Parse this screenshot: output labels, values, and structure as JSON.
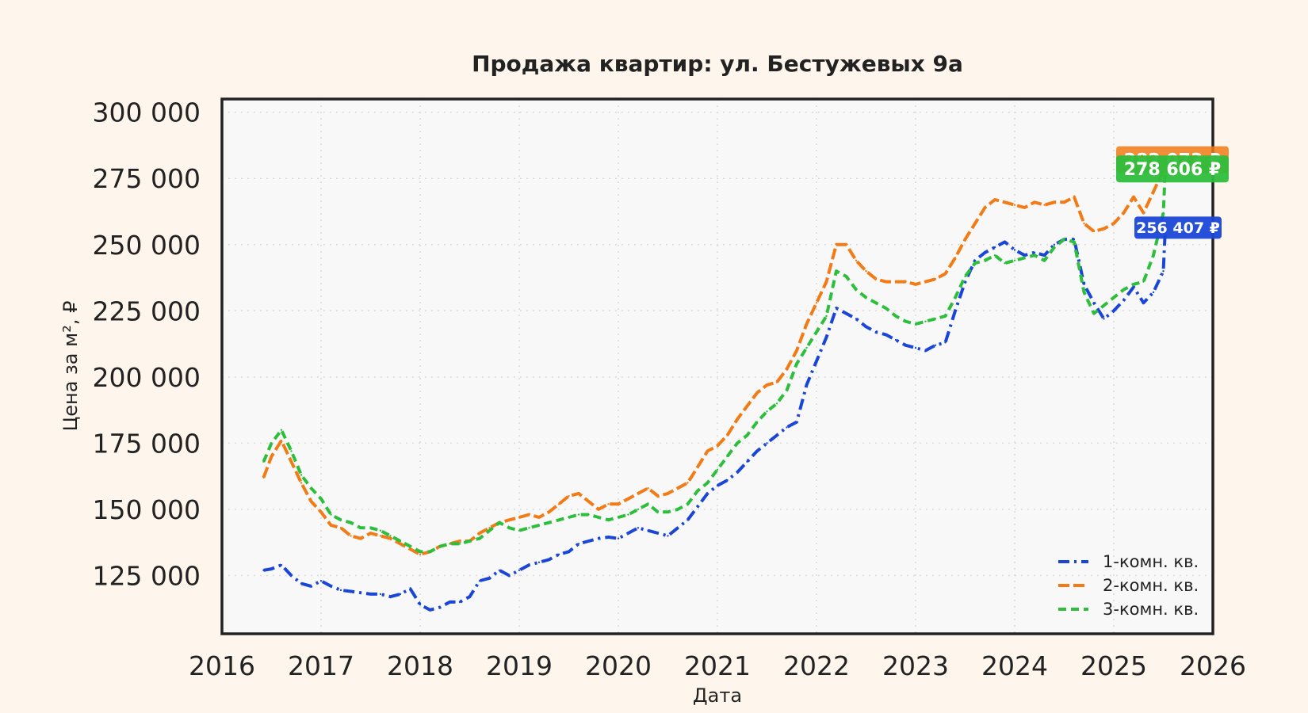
{
  "chart_data": {
    "type": "line",
    "title": "Продажа квартир: ул. Бестужевых 9а",
    "xlabel": "Дата",
    "ylabel": "Цена за м², ₽",
    "xlim": [
      2016,
      2026
    ],
    "ylim": [
      103000,
      305000
    ],
    "x_ticks": [
      "2016",
      "2017",
      "2018",
      "2019",
      "2020",
      "2021",
      "2022",
      "2023",
      "2024",
      "2025",
      "2026"
    ],
    "y_ticks": [
      125000,
      150000,
      175000,
      200000,
      225000,
      250000,
      275000,
      300000
    ],
    "y_tick_labels": [
      "125 000",
      "150 000",
      "175 000",
      "200 000",
      "225 000",
      "250 000",
      "275 000",
      "300 000"
    ],
    "grid": true,
    "legend_position": "bottom-right",
    "series": [
      {
        "name": "1-комн. кв.",
        "color": "#1A46D8",
        "dash": "dash-dot",
        "end_label": "256 407 ₽",
        "x": [
          2016.42,
          2016.5,
          2016.6,
          2016.7,
          2016.8,
          2016.9,
          2017.0,
          2017.1,
          2017.2,
          2017.3,
          2017.4,
          2017.5,
          2017.6,
          2017.7,
          2017.8,
          2017.9,
          2018.0,
          2018.1,
          2018.2,
          2018.3,
          2018.4,
          2018.5,
          2018.6,
          2018.7,
          2018.8,
          2018.9,
          2019.0,
          2019.1,
          2019.2,
          2019.3,
          2019.4,
          2019.5,
          2019.6,
          2019.7,
          2019.8,
          2019.9,
          2020.0,
          2020.1,
          2020.2,
          2020.3,
          2020.4,
          2020.5,
          2020.6,
          2020.7,
          2020.8,
          2020.9,
          2021.0,
          2021.1,
          2021.2,
          2021.3,
          2021.4,
          2021.5,
          2021.6,
          2021.7,
          2021.8,
          2021.9,
          2022.0,
          2022.1,
          2022.2,
          2022.3,
          2022.4,
          2022.5,
          2022.6,
          2022.7,
          2022.8,
          2022.9,
          2023.0,
          2023.1,
          2023.2,
          2023.3,
          2023.4,
          2023.5,
          2023.6,
          2023.7,
          2023.8,
          2023.9,
          2024.0,
          2024.1,
          2024.2,
          2024.3,
          2024.4,
          2024.5,
          2024.6,
          2024.7,
          2024.8,
          2024.9,
          2025.0,
          2025.1,
          2025.2,
          2025.3,
          2025.4,
          2025.5,
          2025.52
        ],
        "y": [
          127000,
          127500,
          129000,
          125000,
          122000,
          121000,
          123000,
          121000,
          119500,
          119000,
          118500,
          118000,
          118000,
          117000,
          118000,
          120000,
          114000,
          112000,
          113000,
          115000,
          115000,
          117000,
          123000,
          124000,
          127000,
          125000,
          127000,
          129000,
          130000,
          131000,
          133000,
          134000,
          137000,
          138000,
          139000,
          139500,
          139000,
          141000,
          143000,
          142000,
          141000,
          140000,
          143000,
          146000,
          151000,
          156000,
          159000,
          161000,
          164000,
          168000,
          172000,
          175000,
          178000,
          181000,
          183000,
          197000,
          206000,
          215000,
          226000,
          224000,
          222000,
          219000,
          217000,
          216000,
          214000,
          212000,
          211000,
          210000,
          212000,
          213000,
          225000,
          236000,
          244000,
          247000,
          249000,
          251000,
          248000,
          246000,
          247000,
          246000,
          250000,
          252000,
          252000,
          235000,
          228000,
          222000,
          225000,
          229000,
          234000,
          228000,
          232000,
          240000,
          256407
        ]
      },
      {
        "name": "2-комн. кв.",
        "color": "#F27B16",
        "dash": "dash",
        "end_label": "282 073 ₽",
        "x": [
          2016.42,
          2016.5,
          2016.6,
          2016.7,
          2016.8,
          2016.9,
          2017.0,
          2017.1,
          2017.2,
          2017.3,
          2017.4,
          2017.5,
          2017.6,
          2017.7,
          2017.8,
          2017.9,
          2018.0,
          2018.1,
          2018.2,
          2018.3,
          2018.4,
          2018.5,
          2018.6,
          2018.7,
          2018.8,
          2018.9,
          2019.0,
          2019.1,
          2019.2,
          2019.3,
          2019.4,
          2019.5,
          2019.6,
          2019.7,
          2019.8,
          2019.9,
          2020.0,
          2020.1,
          2020.2,
          2020.3,
          2020.4,
          2020.5,
          2020.6,
          2020.7,
          2020.8,
          2020.9,
          2021.0,
          2021.1,
          2021.2,
          2021.3,
          2021.4,
          2021.5,
          2021.6,
          2021.7,
          2021.8,
          2021.9,
          2022.0,
          2022.1,
          2022.2,
          2022.3,
          2022.4,
          2022.5,
          2022.6,
          2022.7,
          2022.8,
          2022.9,
          2023.0,
          2023.1,
          2023.2,
          2023.3,
          2023.4,
          2023.5,
          2023.6,
          2023.7,
          2023.8,
          2023.9,
          2024.0,
          2024.1,
          2024.2,
          2024.3,
          2024.4,
          2024.5,
          2024.6,
          2024.7,
          2024.8,
          2024.9,
          2025.0,
          2025.1,
          2025.2,
          2025.3,
          2025.4,
          2025.5,
          2025.52
        ],
        "y": [
          162000,
          170000,
          176000,
          168000,
          160000,
          153000,
          149000,
          144000,
          143000,
          140000,
          139000,
          141000,
          140000,
          139000,
          137000,
          135000,
          133000,
          134000,
          136000,
          137000,
          138000,
          138000,
          141000,
          143000,
          145000,
          146000,
          147000,
          148000,
          147000,
          149000,
          152000,
          155000,
          156000,
          153000,
          150000,
          152000,
          152000,
          154000,
          156000,
          158000,
          155000,
          156000,
          158000,
          160000,
          166000,
          172000,
          174000,
          178000,
          184000,
          189000,
          194000,
          197000,
          198000,
          203000,
          210000,
          220000,
          228000,
          236000,
          250000,
          250000,
          244000,
          240000,
          237000,
          236000,
          236000,
          236000,
          235000,
          236000,
          237000,
          239000,
          245000,
          252000,
          258000,
          264000,
          267000,
          266000,
          265000,
          264000,
          266000,
          265000,
          266000,
          266000,
          268000,
          258000,
          255000,
          256000,
          258000,
          262000,
          268000,
          262000,
          270000,
          278000,
          282073
        ]
      },
      {
        "name": "3-комн. кв.",
        "color": "#2DBE3B",
        "dash": "dash-short",
        "end_label": "278 606 ₽",
        "x": [
          2016.42,
          2016.5,
          2016.6,
          2016.7,
          2016.8,
          2016.9,
          2017.0,
          2017.1,
          2017.2,
          2017.3,
          2017.4,
          2017.5,
          2017.6,
          2017.7,
          2017.8,
          2017.9,
          2018.0,
          2018.1,
          2018.2,
          2018.3,
          2018.4,
          2018.5,
          2018.6,
          2018.7,
          2018.8,
          2018.9,
          2019.0,
          2019.1,
          2019.2,
          2019.3,
          2019.4,
          2019.5,
          2019.6,
          2019.7,
          2019.8,
          2019.9,
          2020.0,
          2020.1,
          2020.2,
          2020.3,
          2020.4,
          2020.5,
          2020.6,
          2020.7,
          2020.8,
          2020.9,
          2021.0,
          2021.1,
          2021.2,
          2021.3,
          2021.4,
          2021.5,
          2021.6,
          2021.7,
          2021.8,
          2021.9,
          2022.0,
          2022.1,
          2022.2,
          2022.3,
          2022.4,
          2022.5,
          2022.6,
          2022.7,
          2022.8,
          2022.9,
          2023.0,
          2023.1,
          2023.2,
          2023.3,
          2023.4,
          2023.5,
          2023.6,
          2023.7,
          2023.8,
          2023.9,
          2024.0,
          2024.1,
          2024.2,
          2024.3,
          2024.4,
          2024.5,
          2024.6,
          2024.7,
          2024.8,
          2024.9,
          2025.0,
          2025.1,
          2025.2,
          2025.3,
          2025.4,
          2025.5,
          2025.52
        ],
        "y": [
          168000,
          175000,
          180000,
          172000,
          163000,
          158000,
          154000,
          148000,
          146000,
          145000,
          143000,
          143000,
          142000,
          140000,
          138000,
          136000,
          134000,
          134000,
          136000,
          137000,
          137000,
          138000,
          139000,
          142000,
          145000,
          143000,
          142000,
          143000,
          144000,
          145000,
          146000,
          147000,
          148000,
          148000,
          147000,
          146000,
          147000,
          148000,
          150000,
          152000,
          149000,
          149000,
          150000,
          152000,
          157000,
          160000,
          165000,
          170000,
          175000,
          178000,
          183000,
          187000,
          190000,
          195000,
          205000,
          211000,
          217000,
          223000,
          240000,
          238000,
          233000,
          230000,
          228000,
          226000,
          223000,
          221000,
          220000,
          221000,
          222000,
          223000,
          230000,
          238000,
          243000,
          244000,
          246000,
          243000,
          244000,
          245000,
          246000,
          244000,
          249000,
          252000,
          251000,
          232000,
          224000,
          227000,
          230000,
          233000,
          235000,
          236000,
          246000,
          262000,
          278606
        ]
      }
    ]
  }
}
